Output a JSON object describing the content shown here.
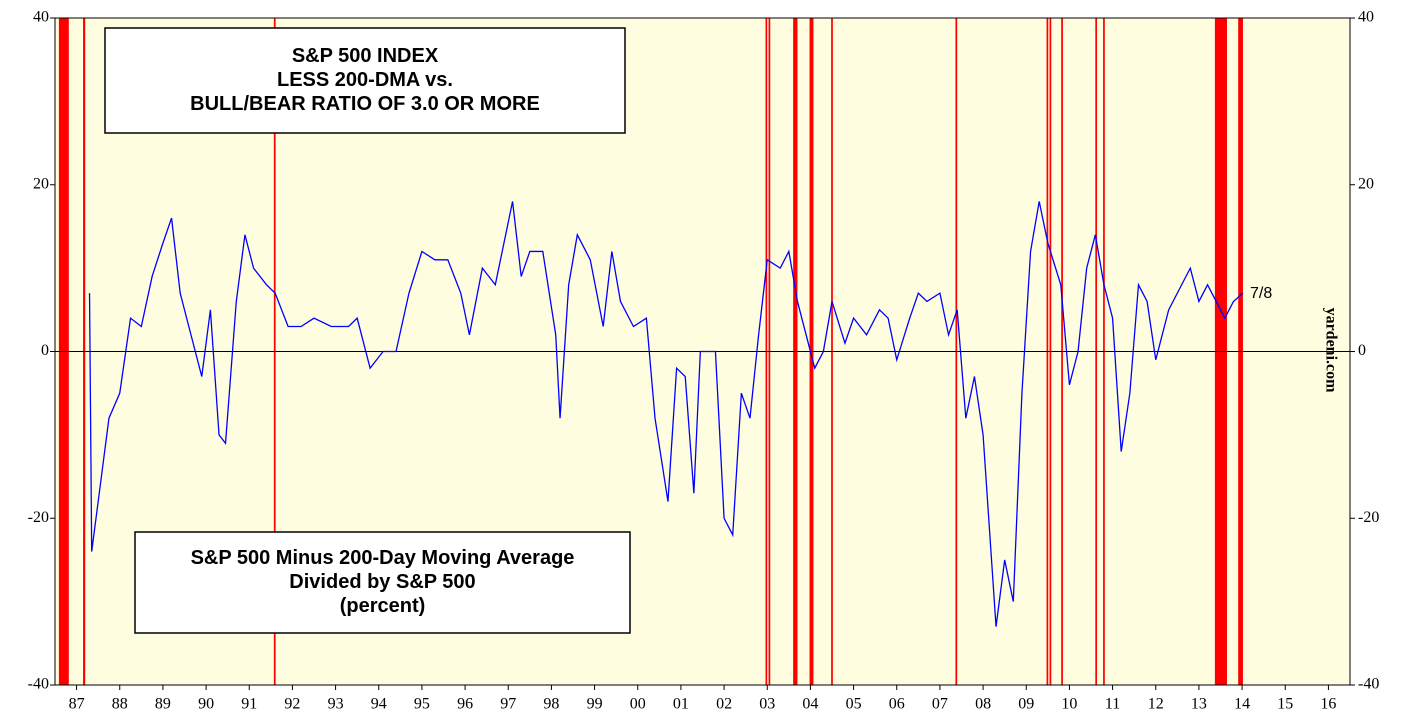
{
  "chart_data": {
    "type": "line",
    "title_box": [
      "S&P 500 INDEX",
      "LESS 200-DMA vs.",
      "BULL/BEAR RATIO OF 3.0 OR MORE"
    ],
    "note_box": [
      "S&P 500 Minus 200-Day Moving Average",
      "Divided by S&P 500",
      "(percent)"
    ],
    "end_label": "7/8",
    "source": "yardeni.com",
    "background": "#fffde0",
    "period_color": "#ff0000",
    "periods": [
      [
        1987.09,
        1987.32
      ],
      [
        1987.65,
        1987.7
      ],
      [
        1992.07,
        1992.11
      ],
      [
        2003.46,
        2003.5
      ],
      [
        2003.53,
        2003.57
      ],
      [
        2004.1,
        2004.2
      ],
      [
        2004.48,
        2004.57
      ],
      [
        2004.98,
        2005.02
      ],
      [
        2007.86,
        2007.9
      ],
      [
        2009.97,
        2010.01
      ],
      [
        2010.04,
        2010.08
      ],
      [
        2010.31,
        2010.35
      ],
      [
        2011.1,
        2011.14
      ],
      [
        2011.28,
        2011.32
      ],
      [
        2013.87,
        2014.15
      ],
      [
        2014.41,
        2014.52
      ]
    ],
    "series": [
      {
        "name": "S&P 500 Minus 200-Day Moving Average",
        "color": "#0000ff",
        "x": [
          1987.8,
          1987.85,
          1988.0,
          1988.25,
          1988.5,
          1988.75,
          1989.0,
          1989.25,
          1989.5,
          1989.7,
          1989.9,
          1990.1,
          1990.4,
          1990.6,
          1990.8,
          1990.95,
          1991.2,
          1991.4,
          1991.6,
          1991.9,
          1992.1,
          1992.4,
          1992.7,
          1993.0,
          1993.4,
          1993.8,
          1994.0,
          1994.3,
          1994.6,
          1994.9,
          1995.2,
          1995.5,
          1995.8,
          1996.1,
          1996.4,
          1996.6,
          1996.9,
          1997.2,
          1997.6,
          1997.8,
          1998.0,
          1998.3,
          1998.6,
          1998.7,
          1998.9,
          1999.1,
          1999.4,
          1999.7,
          1999.9,
          2000.1,
          2000.4,
          2000.7,
          2000.9,
          2001.2,
          2001.4,
          2001.6,
          2001.8,
          2001.95,
          2002.1,
          2002.3,
          2002.5,
          2002.7,
          2002.9,
          2003.1,
          2003.3,
          2003.5,
          2003.8,
          2004.0,
          2004.2,
          2004.4,
          2004.6,
          2004.8,
          2005.0,
          2005.3,
          2005.5,
          2005.8,
          2006.1,
          2006.3,
          2006.5,
          2006.8,
          2007.0,
          2007.2,
          2007.5,
          2007.7,
          2007.9,
          2008.1,
          2008.3,
          2008.5,
          2008.8,
          2009.0,
          2009.2,
          2009.4,
          2009.6,
          2009.8,
          2010.0,
          2010.3,
          2010.5,
          2010.7,
          2010.9,
          2011.1,
          2011.3,
          2011.5,
          2011.7,
          2011.9,
          2012.1,
          2012.3,
          2012.5,
          2012.8,
          2013.0,
          2013.3,
          2013.5,
          2013.7,
          2013.9,
          2014.1,
          2014.3,
          2014.52
        ],
        "values": [
          7,
          -24,
          -18,
          -8,
          -5,
          4,
          3,
          9,
          13,
          16,
          7,
          3,
          -3,
          5,
          -10,
          -11,
          6,
          14,
          10,
          8,
          7,
          3,
          3,
          4,
          3,
          3,
          4,
          -2,
          0,
          0,
          7,
          12,
          11,
          11,
          7,
          2,
          10,
          8,
          18,
          9,
          12,
          12,
          2,
          -8,
          8,
          14,
          11,
          3,
          12,
          6,
          3,
          4,
          -8,
          -18,
          -2,
          -3,
          -17,
          0,
          0,
          0,
          -20,
          -22,
          -5,
          -8,
          2,
          11,
          10,
          12,
          6,
          2,
          -2,
          0,
          6,
          1,
          4,
          2,
          5,
          4,
          -1,
          4,
          7,
          6,
          7,
          2,
          5,
          -8,
          -3,
          -10,
          -33,
          -25,
          -30,
          -5,
          12,
          18,
          13,
          8,
          -4,
          0,
          10,
          14,
          8,
          4,
          -12,
          -5,
          8,
          6,
          -1,
          5,
          7,
          10,
          6,
          8,
          6,
          4,
          6,
          7
        ]
      }
    ],
    "xlim": [
      1987,
      2017
    ],
    "xticks": [
      {
        "value": 1987.5,
        "label": "87"
      },
      {
        "value": 1988.5,
        "label": "88"
      },
      {
        "value": 1989.5,
        "label": "89"
      },
      {
        "value": 1990.5,
        "label": "90"
      },
      {
        "value": 1991.5,
        "label": "91"
      },
      {
        "value": 1992.5,
        "label": "92"
      },
      {
        "value": 1993.5,
        "label": "93"
      },
      {
        "value": 1994.5,
        "label": "94"
      },
      {
        "value": 1995.5,
        "label": "95"
      },
      {
        "value": 1996.5,
        "label": "96"
      },
      {
        "value": 1997.5,
        "label": "97"
      },
      {
        "value": 1998.5,
        "label": "98"
      },
      {
        "value": 1999.5,
        "label": "99"
      },
      {
        "value": 2000.5,
        "label": "00"
      },
      {
        "value": 2001.5,
        "label": "01"
      },
      {
        "value": 2002.5,
        "label": "02"
      },
      {
        "value": 2003.5,
        "label": "03"
      },
      {
        "value": 2004.5,
        "label": "04"
      },
      {
        "value": 2005.5,
        "label": "05"
      },
      {
        "value": 2006.5,
        "label": "06"
      },
      {
        "value": 2007.5,
        "label": "07"
      },
      {
        "value": 2008.5,
        "label": "08"
      },
      {
        "value": 2009.5,
        "label": "09"
      },
      {
        "value": 2010.5,
        "label": "10"
      },
      {
        "value": 2011.5,
        "label": "11"
      },
      {
        "value": 2012.5,
        "label": "12"
      },
      {
        "value": 2013.5,
        "label": "13"
      },
      {
        "value": 2014.5,
        "label": "14"
      },
      {
        "value": 2015.5,
        "label": "15"
      },
      {
        "value": 2016.5,
        "label": "16"
      }
    ],
    "ylim": [
      -40,
      40
    ],
    "yticks": [
      -40,
      -20,
      0,
      20,
      40
    ]
  }
}
